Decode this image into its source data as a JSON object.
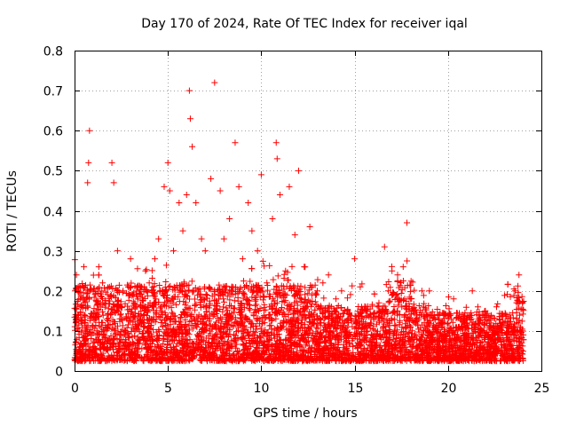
{
  "chart_data": {
    "type": "scatter",
    "title": "Day 170 of 2024, Rate Of TEC Index for receiver iqal",
    "xlabel": "GPS time / hours",
    "ylabel": "ROTI / TECUs",
    "xlim": [
      0,
      25
    ],
    "ylim": [
      0,
      0.8
    ],
    "xticks": [
      0,
      5,
      10,
      15,
      20,
      25
    ],
    "xtick_labels": [
      "0",
      "5",
      "10",
      "15",
      "20",
      "25"
    ],
    "yticks": [
      0,
      0.1,
      0.2,
      0.3,
      0.4,
      0.5,
      0.6,
      0.7,
      0.8
    ],
    "ytick_labels": [
      "0",
      "0.1",
      "0.2",
      "0.3",
      "0.4",
      "0.5",
      "0.6",
      "0.7",
      "0.8"
    ],
    "grid": true,
    "marker": "+",
    "color": "#ff0000",
    "series": [
      {
        "name": "ROTI",
        "x": [
          0.1,
          0.3,
          0.5,
          0.7,
          0.75,
          0.8,
          1.0,
          1.3,
          1.5,
          2.0,
          2.1,
          2.3,
          2.6,
          3.0,
          3.5,
          3.8,
          4.0,
          4.3,
          4.5,
          4.8,
          5.0,
          5.1,
          5.3,
          5.6,
          5.8,
          6.0,
          6.15,
          6.2,
          6.3,
          6.5,
          6.8,
          7.0,
          7.3,
          7.5,
          7.8,
          8.0,
          8.3,
          8.6,
          8.8,
          9.0,
          9.3,
          9.5,
          9.8,
          10.0,
          10.3,
          10.6,
          10.8,
          10.85,
          11.0,
          11.3,
          11.5,
          11.8,
          12.0,
          12.3,
          12.6,
          13.0,
          13.3,
          13.6,
          14.0,
          14.3,
          14.6,
          15.0,
          15.3,
          15.6,
          16.0,
          16.3,
          16.6,
          16.8,
          17.0,
          17.3,
          17.6,
          17.8,
          18.0,
          18.3,
          18.6,
          19.0,
          19.3,
          19.6,
          20.0,
          20.3,
          20.6,
          21.0,
          21.3,
          21.6,
          22.0,
          22.3,
          22.6,
          23.0,
          23.3,
          23.6,
          23.8,
          24.0
        ],
        "y": [
          0.24,
          0.18,
          0.26,
          0.47,
          0.52,
          0.6,
          0.2,
          0.26,
          0.22,
          0.52,
          0.47,
          0.3,
          0.2,
          0.28,
          0.12,
          0.25,
          0.22,
          0.28,
          0.33,
          0.46,
          0.52,
          0.45,
          0.3,
          0.42,
          0.35,
          0.44,
          0.7,
          0.63,
          0.56,
          0.42,
          0.33,
          0.3,
          0.48,
          0.72,
          0.45,
          0.33,
          0.38,
          0.57,
          0.46,
          0.28,
          0.42,
          0.35,
          0.3,
          0.49,
          0.22,
          0.38,
          0.57,
          0.53,
          0.44,
          0.25,
          0.46,
          0.34,
          0.5,
          0.26,
          0.36,
          0.2,
          0.22,
          0.24,
          0.18,
          0.2,
          0.15,
          0.28,
          0.21,
          0.16,
          0.13,
          0.17,
          0.31,
          0.2,
          0.25,
          0.24,
          0.26,
          0.37,
          0.18,
          0.14,
          0.2,
          0.2,
          0.13,
          0.12,
          0.14,
          0.18,
          0.11,
          0.12,
          0.2,
          0.16,
          0.15,
          0.12,
          0.16,
          0.12,
          0.14,
          0.2,
          0.24,
          0.1
        ]
      }
    ],
    "noise_points_description": "dense band of points between 0.02 and 0.2 across 0-24 h"
  }
}
